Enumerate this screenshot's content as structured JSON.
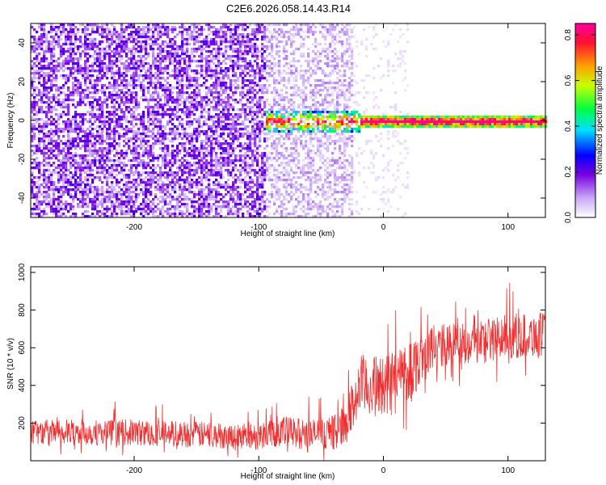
{
  "title": "C2E6.2026.058.14.43.R14",
  "colors": {
    "snr_line": "#f03030",
    "frame": "#000000",
    "background": "#ffffff"
  },
  "chart_data": [
    {
      "type": "heatmap",
      "xlabel": "Height of straight line (km)",
      "ylabel": "Frequency (Hz)",
      "xlim": [
        -283,
        130
      ],
      "ylim": [
        -50,
        50
      ],
      "x_ticks": [
        -200,
        -100,
        0,
        100
      ],
      "y_ticks": [
        -40,
        -20,
        0,
        20,
        40
      ],
      "colorbar": {
        "label": "Normalized spectral amplitude",
        "range": [
          0,
          0.85
        ],
        "ticks": [
          0.0,
          0.2,
          0.4,
          0.6,
          0.8
        ],
        "colormap": "white-purple-blue-cyan-green-yellow-orange-red-magenta"
      },
      "regions": [
        {
          "x_range": [
            -283,
            -95
          ],
          "freq_range": [
            -50,
            50
          ],
          "mean_amplitude": 0.1,
          "description": "dense noise"
        },
        {
          "x_range": [
            -95,
            -25
          ],
          "freq_range": [
            -50,
            50
          ],
          "mean_amplitude": 0.05,
          "description": "fading noise"
        },
        {
          "x_range": [
            -25,
            20
          ],
          "freq_range": [
            -50,
            50
          ],
          "mean_amplitude": 0.02,
          "description": "sparse noise"
        },
        {
          "x_range": [
            -95,
            130
          ],
          "freq_center": 0,
          "freq_halfwidth": 3,
          "mean_amplitude": 0.55,
          "description": "carrier signal"
        }
      ]
    },
    {
      "type": "line",
      "xlabel": "Height of straight line (km)",
      "ylabel": "SNR (10 * v/v)",
      "xlim": [
        -283,
        130
      ],
      "ylim": [
        0,
        1030
      ],
      "x_ticks": [
        -200,
        -100,
        0,
        100
      ],
      "y_ticks": [
        200,
        400,
        600,
        800,
        1000
      ],
      "series": [
        {
          "x": [
            -283,
            -250,
            -200,
            -150,
            -120,
            -100,
            -90,
            -60,
            -40,
            -30,
            -25,
            -20,
            -15,
            -10,
            0,
            20,
            40,
            60,
            80,
            100,
            130
          ],
          "mean": [
            150,
            150,
            150,
            140,
            130,
            130,
            160,
            140,
            150,
            200,
            280,
            380,
            400,
            390,
            400,
            480,
            600,
            620,
            640,
            660,
            670
          ],
          "spread": [
            70,
            70,
            70,
            70,
            70,
            70,
            90,
            80,
            90,
            110,
            140,
            170,
            170,
            160,
            170,
            170,
            120,
            120,
            120,
            120,
            120
          ]
        }
      ]
    }
  ]
}
